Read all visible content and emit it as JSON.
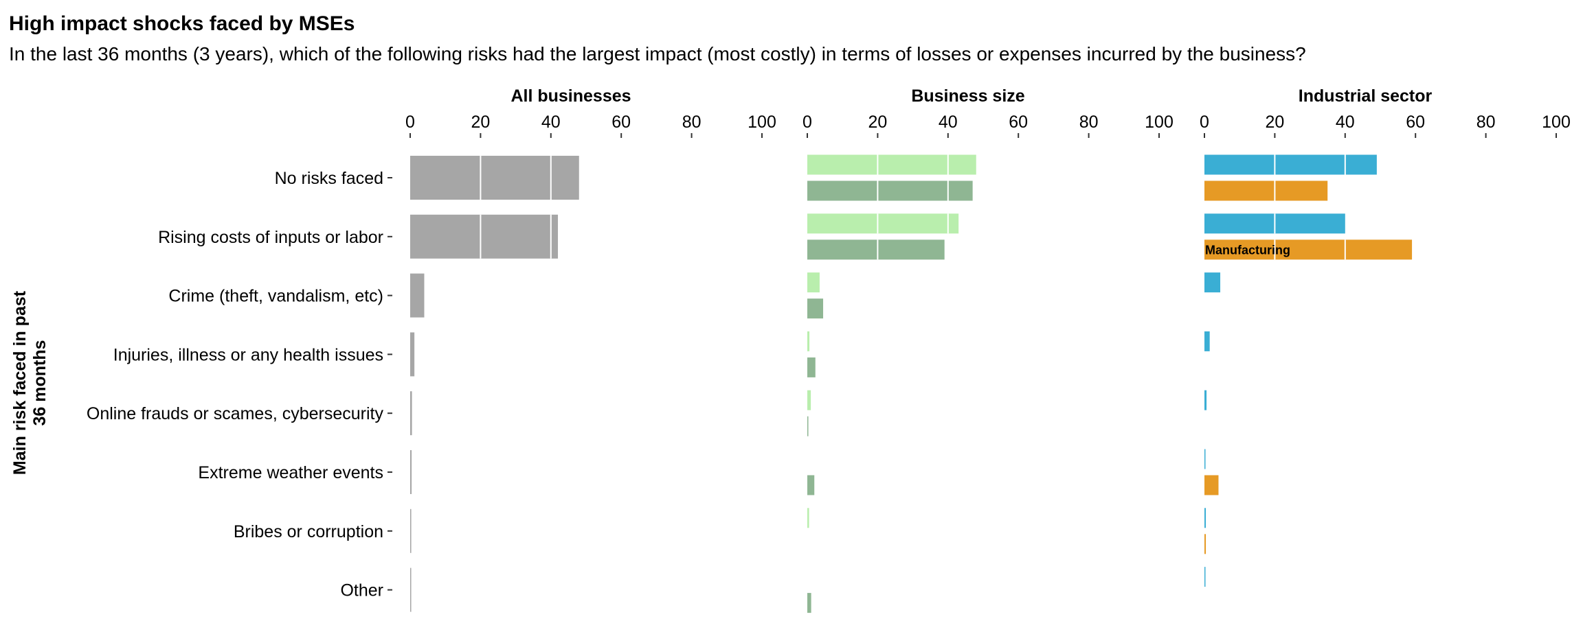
{
  "chart_data": {
    "type": "bar",
    "orientation": "horizontal",
    "title": "High impact shocks faced by MSEs",
    "subtitle": "In the last 36 months (3 years), which of the following risks had the largest impact (most costly) in terms of losses or expenses incurred by the business?",
    "ylabel": "Main risk faced in past 36 months",
    "xlim": [
      0,
      100
    ],
    "xticks": [
      0,
      20,
      40,
      60,
      80,
      100
    ],
    "grid": true,
    "categories": [
      "No risks faced",
      "Rising costs of inputs or labor",
      "Crime (theft, vandalism, etc)",
      "Injuries, illness or any health issues",
      "Online frauds or scames, cybersecurity",
      "Extreme weather events",
      "Bribes or corruption",
      "Other"
    ],
    "panels": [
      {
        "title": "All businesses",
        "series": [
          {
            "color": "#a6a6a6",
            "values": [
              48,
              42,
              4,
              1.2,
              0.5,
              0.4,
              0.3,
              0.2
            ]
          }
        ]
      },
      {
        "title": "Business size",
        "series": [
          {
            "color": "#b9eead",
            "values": [
              48,
              43,
              3.5,
              0.6,
              1.0,
              0,
              0.5,
              0
            ]
          },
          {
            "color": "#8fb693",
            "values": [
              47,
              39,
              4.5,
              2.3,
              0.1,
              2.0,
              0,
              1.1
            ]
          }
        ]
      },
      {
        "title": "Industrial sector",
        "series": [
          {
            "color": "#3aaed4",
            "values": [
              49,
              40,
              4.5,
              1.5,
              0.6,
              0.2,
              0.4,
              0.2
            ]
          },
          {
            "name": "Manufacturing",
            "color": "#e69a25",
            "values": [
              35,
              59,
              0,
              0,
              0,
              4,
              0.4,
              0
            ]
          }
        ]
      }
    ]
  }
}
